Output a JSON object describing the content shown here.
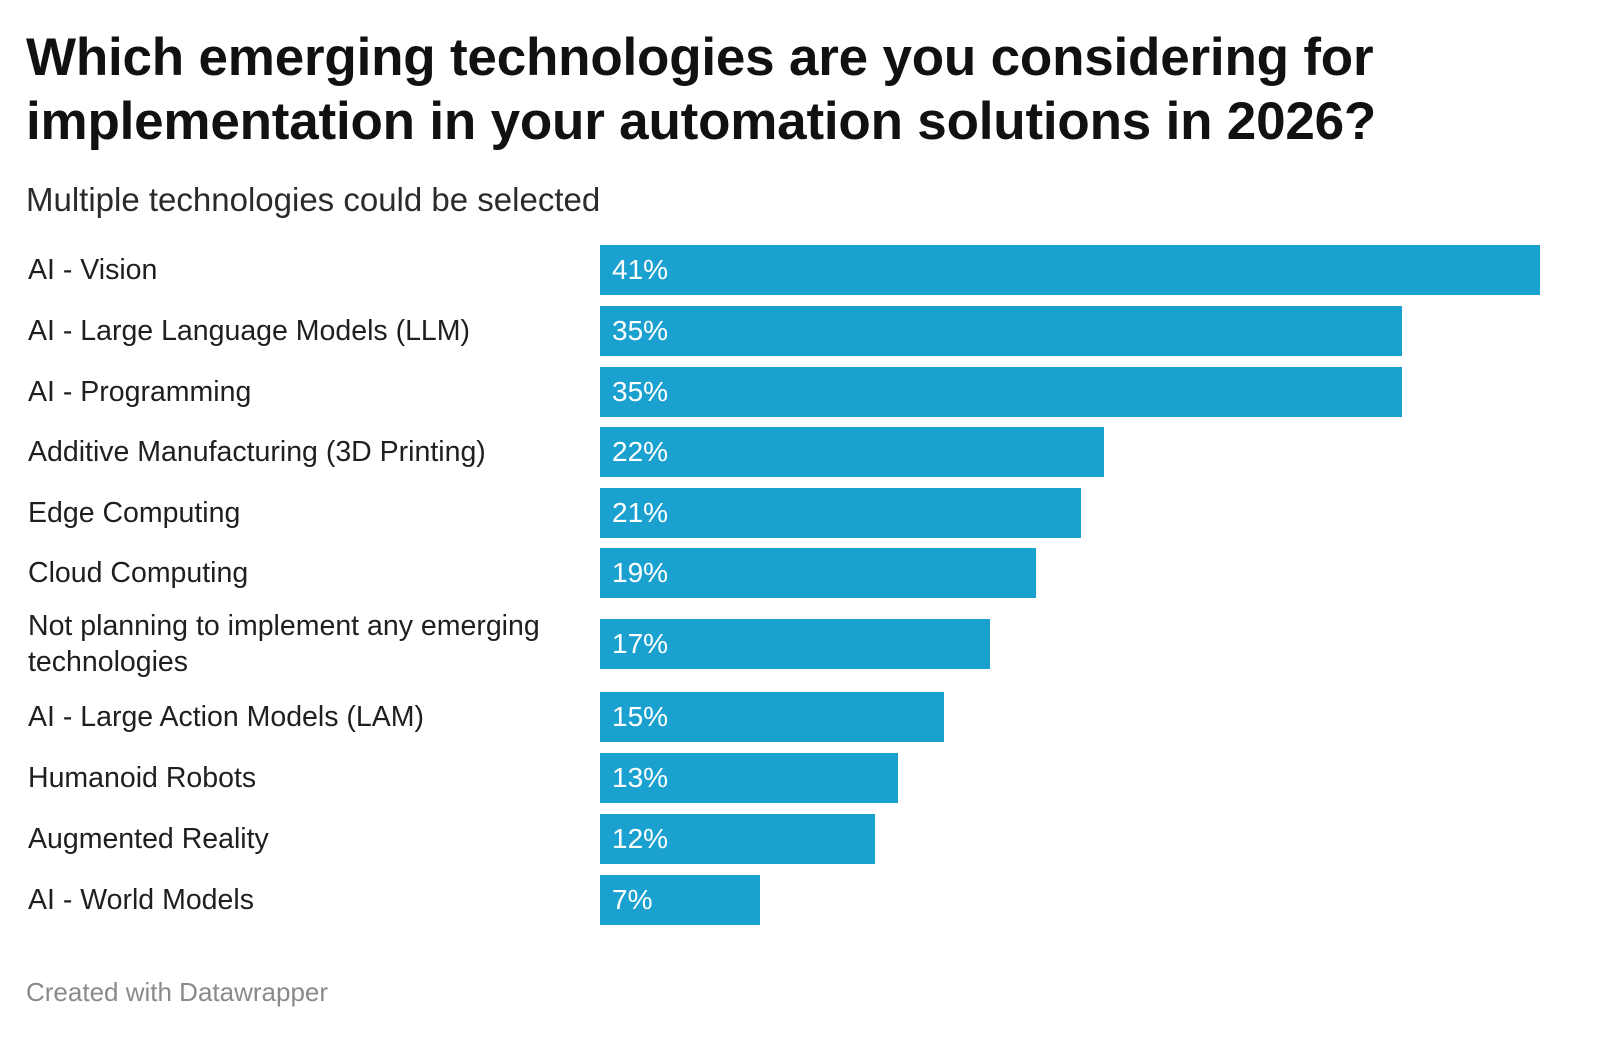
{
  "chart_data": {
    "type": "bar",
    "orientation": "horizontal",
    "title": "Which emerging technologies are you considering for implementation in your automation solutions in 2026?",
    "subtitle": "Multiple technologies could be selected",
    "categories": [
      "AI - Vision",
      "AI - Large Language Models (LLM)",
      "AI - Programming",
      "Additive Manufacturing (3D Printing)",
      "Edge Computing",
      "Cloud Computing",
      "Not planning to implement any emerging technologies",
      "AI - Large Action Models (LAM)",
      "Humanoid Robots",
      "Augmented Reality",
      "AI - World Models"
    ],
    "values": [
      41,
      35,
      35,
      22,
      21,
      19,
      17,
      15,
      13,
      12,
      7
    ],
    "value_labels": [
      "41%",
      "35%",
      "35%",
      "22%",
      "21%",
      "19%",
      "17%",
      "15%",
      "13%",
      "12%",
      "7%"
    ],
    "xlim": [
      0,
      41
    ],
    "grid": false,
    "legend": "none",
    "bar_color": "#1ba1cf",
    "footer": "Created with Datawrapper"
  }
}
